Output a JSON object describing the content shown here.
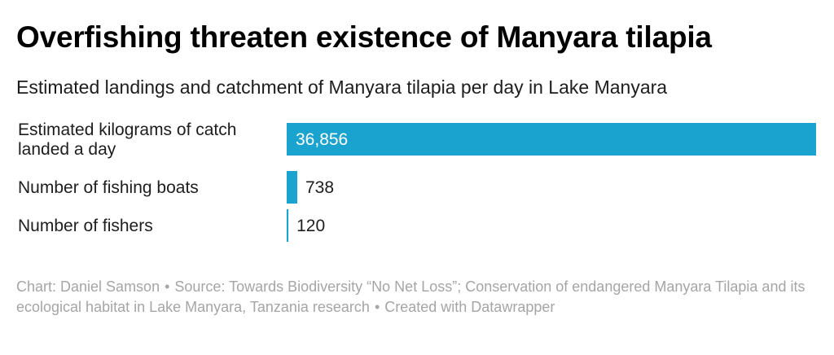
{
  "title": "Overfishing threaten existence of Manyara tilapia",
  "subtitle": "Estimated landings and catchment of Manyara tilapia per day in Lake Manyara",
  "colors": {
    "bar": "#1ba3cf",
    "text": "#1d1d1d",
    "label_inside": "#ffffff",
    "footer": "#a5a5a5"
  },
  "chart_data": {
    "type": "bar",
    "orientation": "horizontal",
    "categories": [
      [
        "Estimated kilograms of catch",
        "landed a day"
      ],
      [
        "Number of fishing boats"
      ],
      [
        "Number of fishers"
      ]
    ],
    "values": [
      36856,
      738,
      120
    ],
    "value_labels": [
      "36,856",
      "738",
      "120"
    ],
    "xlim": [
      0,
      36856
    ],
    "grid": false,
    "legend": "none"
  },
  "footer": {
    "chart_by": "Chart: Daniel Samson",
    "source": "Source: Towards Biodiversity “No Net Loss”; Conservation of endangered Manyara Tilapia and its ecological habitat in Lake Manyara, Tanzania research",
    "created_with": "Created with Datawrapper",
    "separator": "•"
  }
}
